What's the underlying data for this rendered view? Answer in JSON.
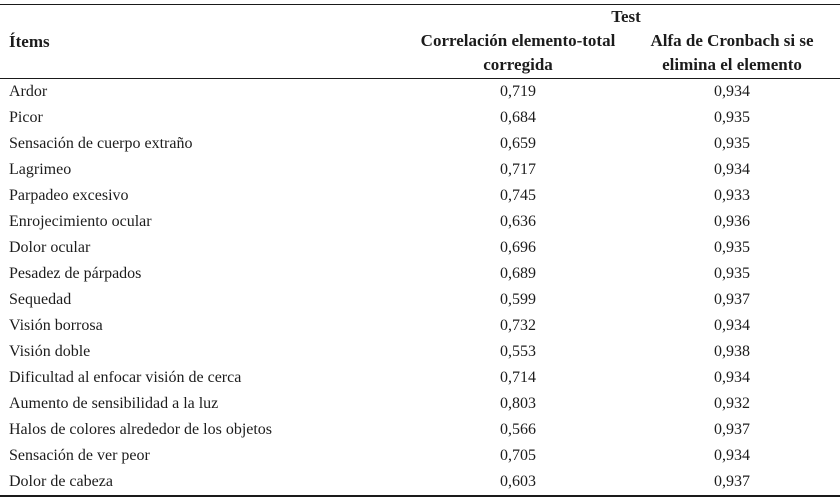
{
  "page": {
    "background_color": "#ffffff",
    "text_color": "#1c1c1c",
    "rule_color": "#1a1a1a"
  },
  "table": {
    "group_header": "Test",
    "items_header": "Ítems",
    "col_corr_header": {
      "line1": "Correlación elemento-total",
      "line2": "corregida"
    },
    "col_alfa_header": {
      "line1": "Alfa de Cronbach si se",
      "line2": "elimina el elemento"
    },
    "rows": [
      {
        "item": "Ardor",
        "corr": "0,719",
        "alfa": "0,934"
      },
      {
        "item": "Picor",
        "corr": "0,684",
        "alfa": "0,935"
      },
      {
        "item": "Sensación de cuerpo extraño",
        "corr": "0,659",
        "alfa": "0,935"
      },
      {
        "item": "Lagrimeo",
        "corr": "0,717",
        "alfa": "0,934"
      },
      {
        "item": "Parpadeo excesivo",
        "corr": "0,745",
        "alfa": "0,933"
      },
      {
        "item": "Enrojecimiento ocular",
        "corr": "0,636",
        "alfa": "0,936"
      },
      {
        "item": "Dolor ocular",
        "corr": "0,696",
        "alfa": "0,935"
      },
      {
        "item": "Pesadez de párpados",
        "corr": "0,689",
        "alfa": "0,935"
      },
      {
        "item": "Sequedad",
        "corr": "0,599",
        "alfa": "0,937"
      },
      {
        "item": "Visión borrosa",
        "corr": "0,732",
        "alfa": "0,934"
      },
      {
        "item": "Visión doble",
        "corr": "0,553",
        "alfa": "0,938"
      },
      {
        "item": "Dificultad al enfocar visión de cerca",
        "corr": "0,714",
        "alfa": "0,934"
      },
      {
        "item": "Aumento de sensibilidad a la luz",
        "corr": "0,803",
        "alfa": "0,932"
      },
      {
        "item": "Halos de colores alrededor de los objetos",
        "corr": "0,566",
        "alfa": "0,937"
      },
      {
        "item": "Sensación de ver peor",
        "corr": "0,705",
        "alfa": "0,934"
      },
      {
        "item": "Dolor de cabeza",
        "corr": "0,603",
        "alfa": "0,937"
      }
    ]
  }
}
